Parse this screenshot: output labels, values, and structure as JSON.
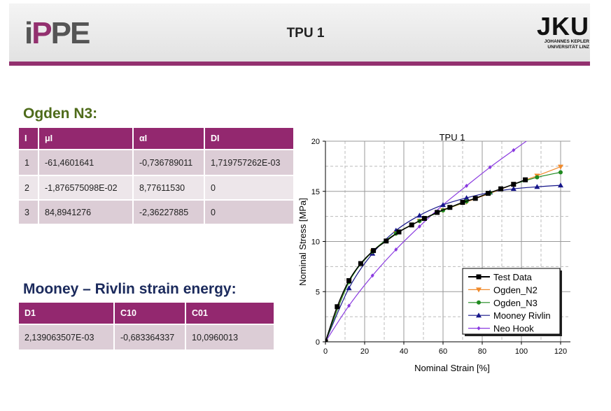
{
  "header": {
    "title": "TPU 1",
    "left_logo": "iPPE",
    "right_logo": "JKU",
    "right_logo_sub": [
      "JOHANNES KEPLER",
      "UNIVERSITÄT LINZ"
    ]
  },
  "ogden": {
    "heading": "Ogden N3:",
    "columns": [
      "I",
      "μI",
      "αI",
      "DI"
    ],
    "rows": [
      [
        "1",
        "-61,4601641",
        "-0,736789011",
        "1,719757262E-03"
      ],
      [
        "2",
        "-1,876575098E-02",
        "8,77611530",
        "0"
      ],
      [
        "3",
        "84,8941276",
        "-2,36227885",
        "0"
      ]
    ]
  },
  "mooney": {
    "heading": "Mooney – Rivlin strain energy:",
    "columns": [
      "D1",
      "C10",
      "C01"
    ],
    "rows": [
      [
        "2,139063507E-03",
        "-0,683364337",
        "10,0960013"
      ]
    ]
  },
  "colors": {
    "brand": "#93286f",
    "ogden_heading": "#4e6b1a",
    "mooney_heading": "#1b2a5c"
  },
  "chart_data": {
    "type": "line",
    "title": "TPU 1",
    "xlabel": "Nominal Strain [%]",
    "ylabel": "Nominal Stress [MPa]",
    "xlim": [
      0,
      125
    ],
    "ylim": [
      0,
      20
    ],
    "xticks": [
      0,
      20,
      40,
      60,
      80,
      100,
      120
    ],
    "yticks": [
      0,
      5,
      10,
      15,
      20
    ],
    "grid": true,
    "legend": "bottom-right",
    "series": [
      {
        "name": "Test Data",
        "color": "#000000",
        "marker": "square",
        "x": [
          0,
          6,
          12,
          18,
          24.5,
          31,
          37.5,
          44,
          50.5,
          57,
          63.5,
          70,
          76.5,
          83,
          89.5,
          96,
          102
        ],
        "y": [
          0,
          3.5,
          6.1,
          7.8,
          9.1,
          10.05,
          10.95,
          11.65,
          12.3,
          12.9,
          13.4,
          13.9,
          14.3,
          14.8,
          15.25,
          15.7,
          16.15
        ]
      },
      {
        "name": "Ogden_N2",
        "color": "#f08a2c",
        "marker": "triangle-down",
        "x": [
          0,
          12,
          24,
          36,
          48,
          60,
          72,
          84,
          96,
          108,
          120
        ],
        "y": [
          0,
          6.0,
          9.0,
          10.8,
          12.05,
          13.1,
          13.95,
          14.8,
          15.7,
          16.55,
          17.45
        ]
      },
      {
        "name": "Ogden_N3",
        "color": "#1f8a1f",
        "marker": "circle",
        "x": [
          0,
          12,
          24,
          36,
          48,
          60,
          72,
          84,
          96,
          108,
          120
        ],
        "y": [
          0,
          5.95,
          9.0,
          10.8,
          12.05,
          13.1,
          14.0,
          14.85,
          15.7,
          16.4,
          16.9
        ]
      },
      {
        "name": "Mooney Rivlin",
        "color": "#16168a",
        "marker": "triangle-up",
        "x": [
          0,
          12,
          24,
          36,
          48,
          60,
          72,
          84,
          96,
          108,
          120
        ],
        "y": [
          0,
          5.35,
          8.8,
          11.1,
          12.6,
          13.65,
          14.35,
          14.9,
          15.25,
          15.45,
          15.6
        ]
      },
      {
        "name": "Neo Hook",
        "color": "#8a3ae0",
        "marker": "diamond",
        "x": [
          0,
          12,
          24,
          36,
          48,
          60,
          72,
          84,
          96,
          108
        ],
        "y": [
          0,
          3.6,
          6.6,
          9.2,
          11.5,
          13.65,
          15.55,
          17.4,
          19.1,
          20.75
        ]
      }
    ]
  }
}
